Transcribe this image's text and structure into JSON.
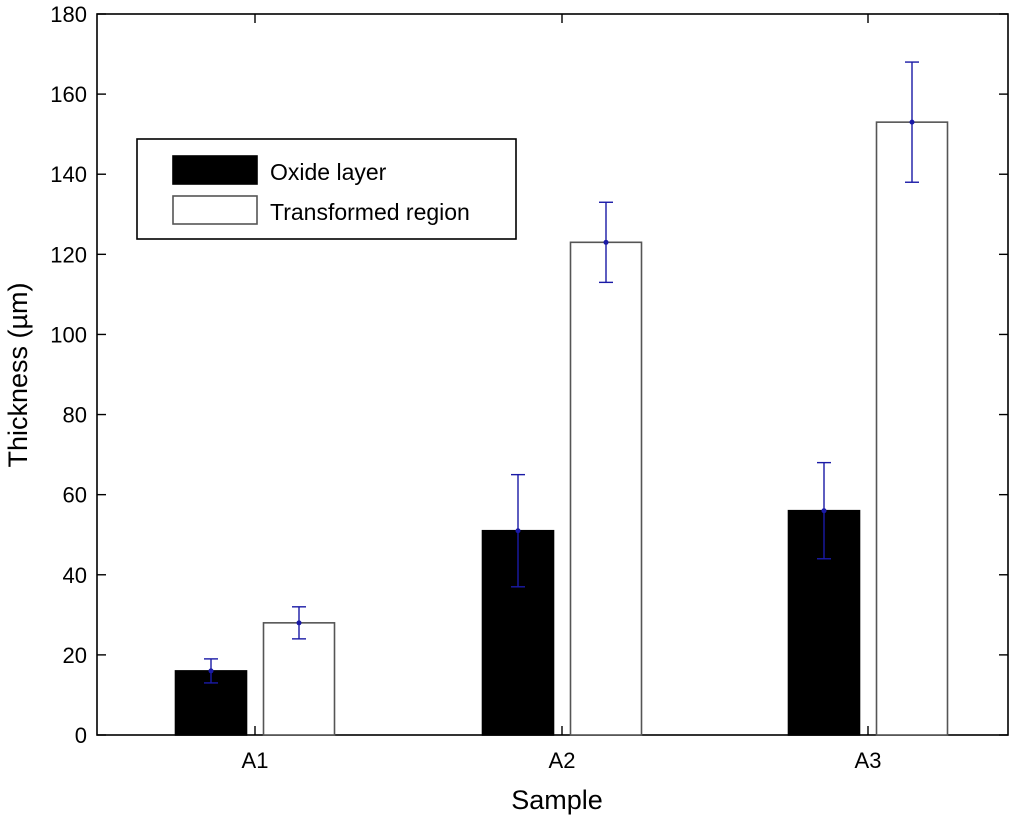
{
  "chart_data": {
    "type": "bar",
    "categories": [
      "A1",
      "A2",
      "A3"
    ],
    "series": [
      {
        "name": "Oxide layer",
        "values": [
          16,
          51,
          56
        ],
        "error_low": [
          13,
          37,
          44
        ],
        "error_high": [
          19,
          65,
          68
        ],
        "fill": "#000000",
        "stroke": "#000000"
      },
      {
        "name": "Transformed region",
        "values": [
          28,
          123,
          153
        ],
        "error_low": [
          24,
          113,
          138
        ],
        "error_high": [
          32,
          133,
          168
        ],
        "fill": "#ffffff",
        "stroke": "#555555"
      }
    ],
    "xlabel": "Sample",
    "ylabel": "Thickness (µm)",
    "ylim": [
      0,
      180
    ],
    "yticks": [
      0,
      20,
      40,
      60,
      80,
      100,
      120,
      140,
      160,
      180
    ],
    "grid": false,
    "legend_position": "top-left",
    "error_bar_color": "#1a1aa6"
  }
}
